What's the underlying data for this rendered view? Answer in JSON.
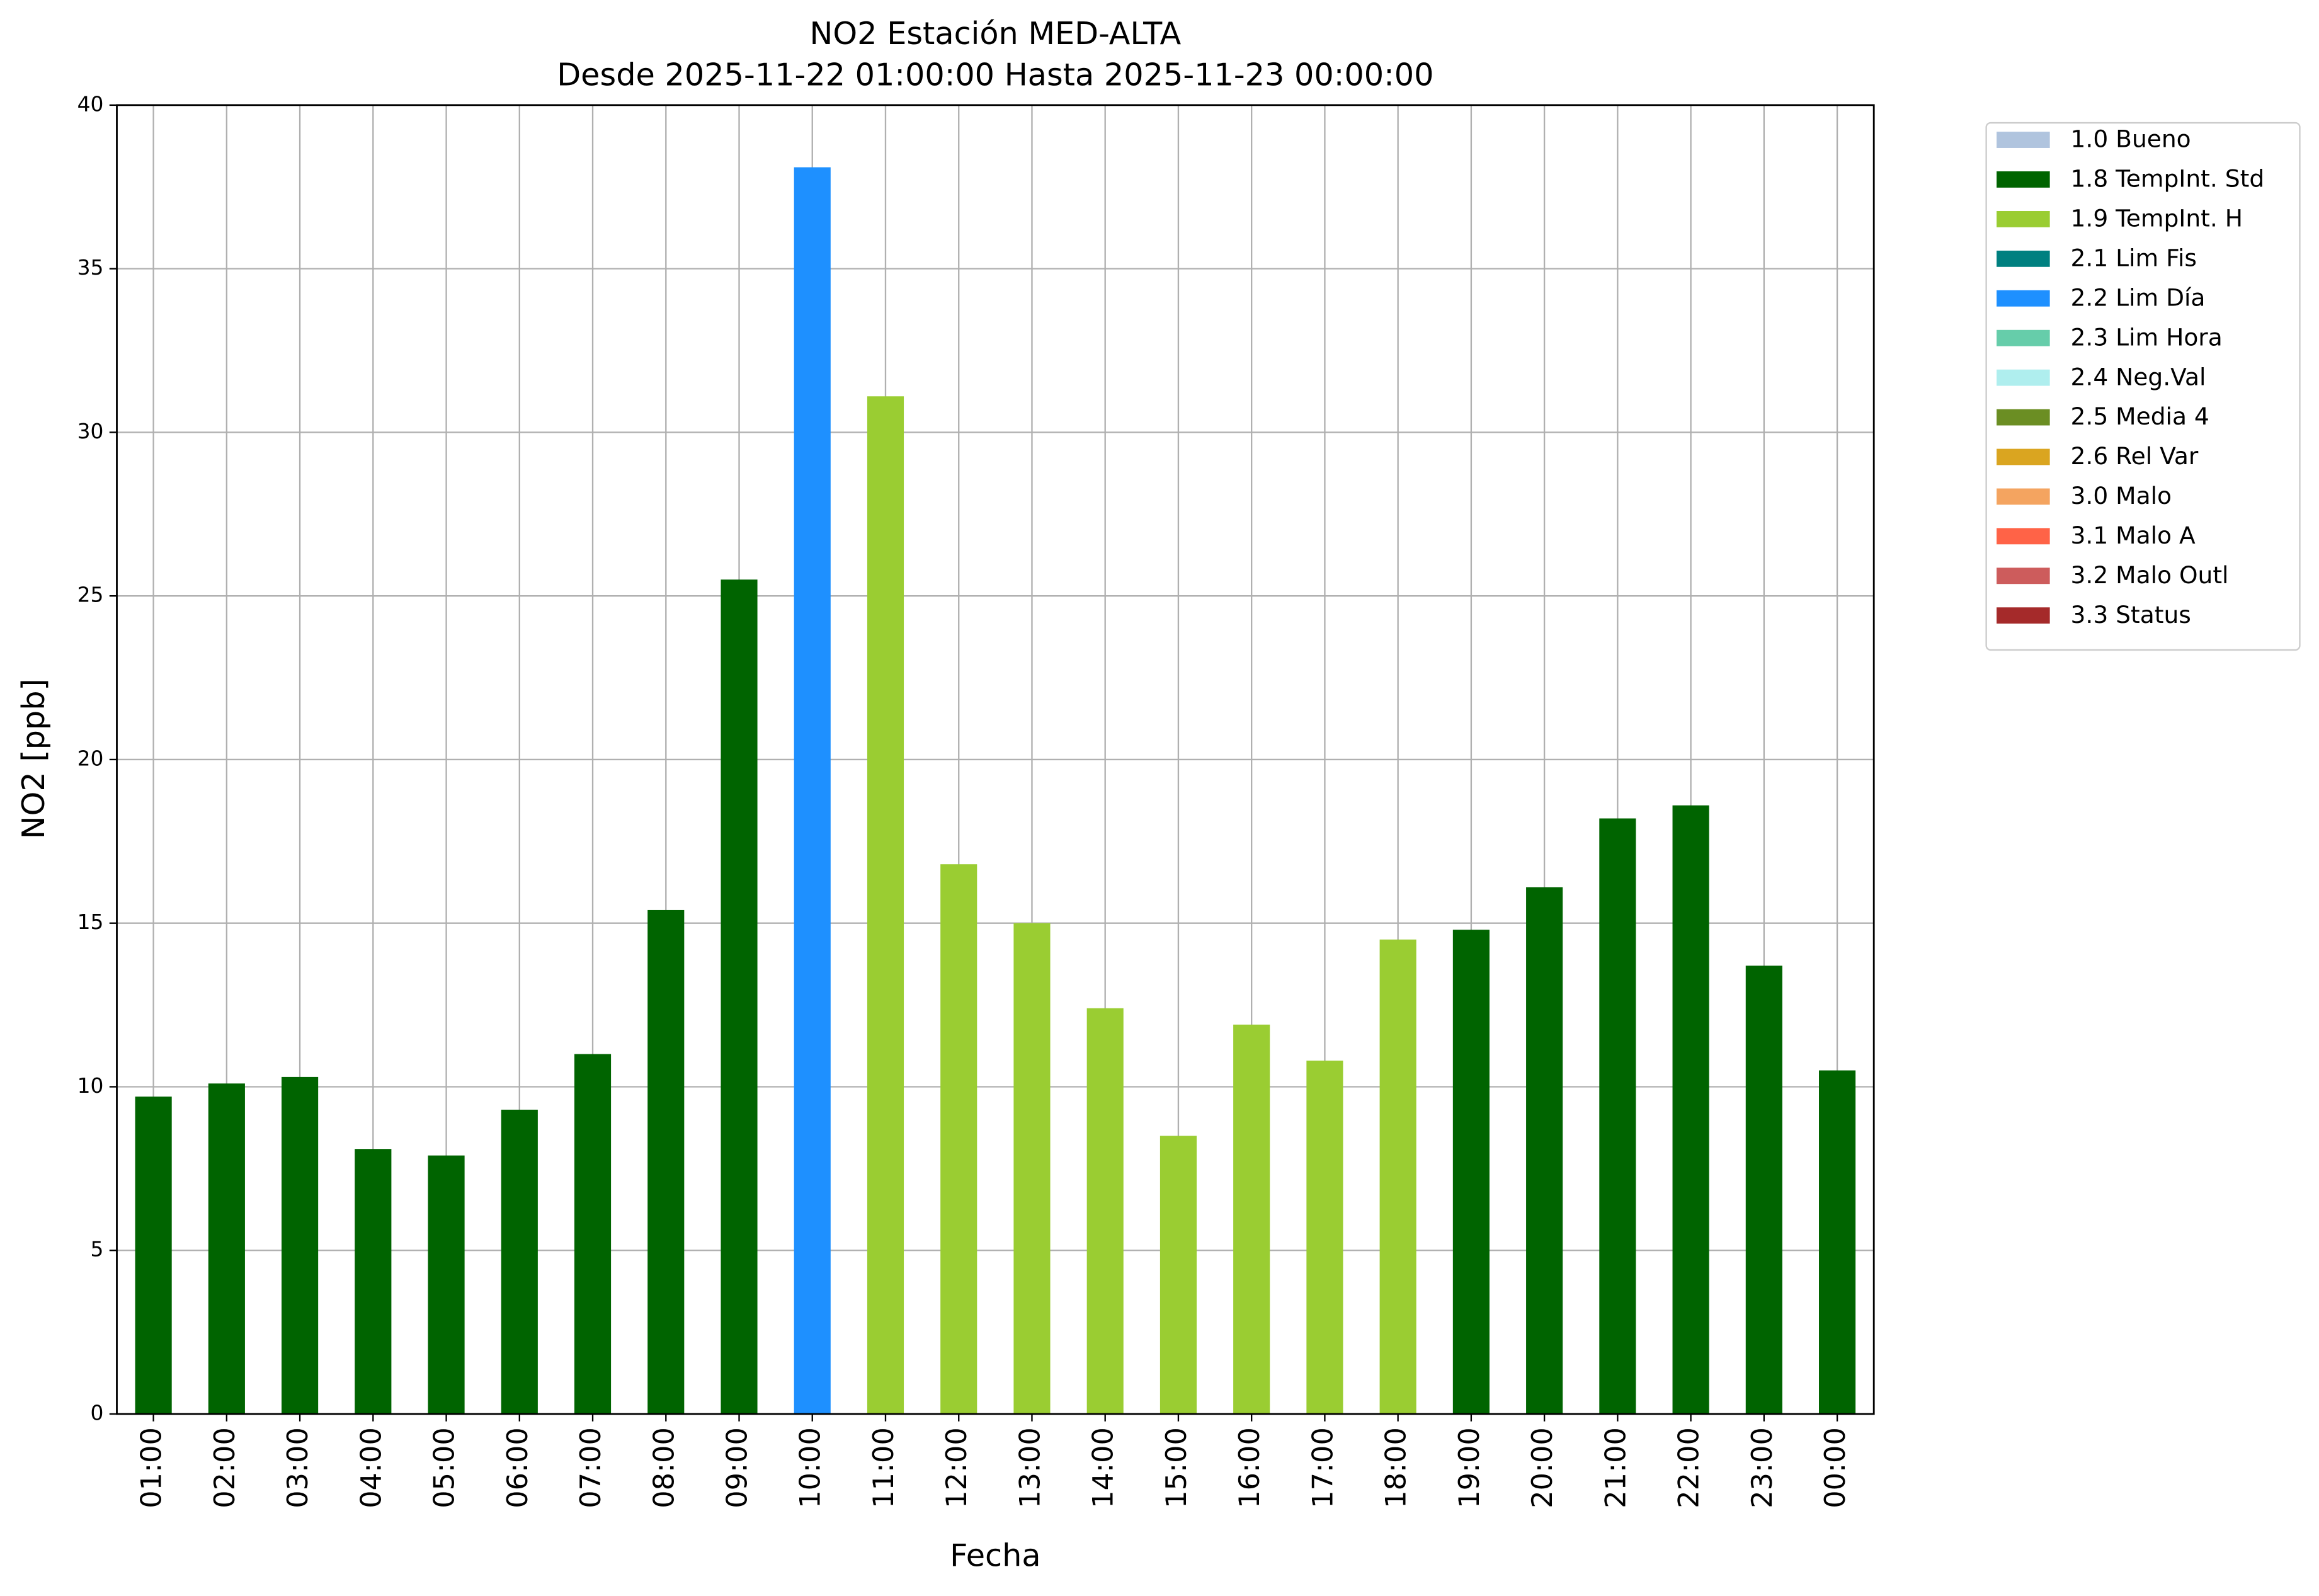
{
  "chart_data": {
    "type": "bar",
    "title": "NO2 Estación MED-ALTA",
    "subtitle": "Desde 2025-11-22 01:00:00 Hasta 2025-11-23 00:00:00",
    "x_label": "Fecha",
    "y_label": "NO2 [ppb]",
    "categories": [
      "01:00",
      "02:00",
      "03:00",
      "04:00",
      "05:00",
      "06:00",
      "07:00",
      "08:00",
      "09:00",
      "10:00",
      "11:00",
      "12:00",
      "13:00",
      "14:00",
      "15:00",
      "16:00",
      "17:00",
      "18:00",
      "19:00",
      "20:00",
      "21:00",
      "22:00",
      "23:00",
      "00:00"
    ],
    "ylim": [
      0,
      40
    ],
    "yticks": [
      0,
      5,
      10,
      15,
      20,
      25,
      30,
      35,
      40
    ],
    "grid": true,
    "legend": "outside-upper-right",
    "series": [
      {
        "name": "1.0 Bueno",
        "color": "#b0c4de",
        "values": [
          null,
          null,
          null,
          null,
          null,
          null,
          null,
          null,
          null,
          null,
          null,
          null,
          null,
          null,
          null,
          null,
          null,
          null,
          null,
          null,
          null,
          null,
          null,
          null
        ]
      },
      {
        "name": "1.8 TempInt. Std",
        "color": "#006400",
        "values": [
          9.7,
          10.1,
          10.3,
          8.1,
          7.9,
          9.3,
          11.0,
          15.4,
          25.5,
          null,
          null,
          null,
          null,
          null,
          null,
          null,
          null,
          null,
          14.8,
          16.1,
          18.2,
          18.6,
          13.7,
          10.5
        ]
      },
      {
        "name": "1.9 TempInt. H",
        "color": "#9acd32",
        "values": [
          null,
          null,
          null,
          null,
          null,
          null,
          null,
          null,
          null,
          null,
          31.1,
          16.8,
          15.0,
          12.4,
          8.5,
          11.9,
          10.8,
          14.5,
          null,
          null,
          null,
          null,
          null,
          null
        ]
      },
      {
        "name": "2.1 Lim Fis",
        "color": "#008080",
        "values": [
          null,
          null,
          null,
          null,
          null,
          null,
          null,
          null,
          null,
          null,
          null,
          null,
          null,
          null,
          null,
          null,
          null,
          null,
          null,
          null,
          null,
          null,
          null,
          null
        ]
      },
      {
        "name": "2.2 Lim Día",
        "color": "#1e90ff",
        "values": [
          null,
          null,
          null,
          null,
          null,
          null,
          null,
          null,
          null,
          38.1,
          null,
          null,
          null,
          null,
          null,
          null,
          null,
          null,
          null,
          null,
          null,
          null,
          null,
          null
        ]
      },
      {
        "name": "2.3 Lim Hora",
        "color": "#66cdaa",
        "values": [
          null,
          null,
          null,
          null,
          null,
          null,
          null,
          null,
          null,
          null,
          null,
          null,
          null,
          null,
          null,
          null,
          null,
          null,
          null,
          null,
          null,
          null,
          null,
          null
        ]
      },
      {
        "name": "2.4 Neg.Val",
        "color": "#afeeee",
        "values": [
          null,
          null,
          null,
          null,
          null,
          null,
          null,
          null,
          null,
          null,
          null,
          null,
          null,
          null,
          null,
          null,
          null,
          null,
          null,
          null,
          null,
          null,
          null,
          null
        ]
      },
      {
        "name": "2.5 Media 4",
        "color": "#6b8e23",
        "values": [
          null,
          null,
          null,
          null,
          null,
          null,
          null,
          null,
          null,
          null,
          null,
          null,
          null,
          null,
          null,
          null,
          null,
          null,
          null,
          null,
          null,
          null,
          null,
          null
        ]
      },
      {
        "name": "2.6 Rel Var",
        "color": "#daa520",
        "values": [
          null,
          null,
          null,
          null,
          null,
          null,
          null,
          null,
          null,
          null,
          null,
          null,
          null,
          null,
          null,
          null,
          null,
          null,
          null,
          null,
          null,
          null,
          null,
          null
        ]
      },
      {
        "name": "3.0 Malo",
        "color": "#f4a460",
        "values": [
          null,
          null,
          null,
          null,
          null,
          null,
          null,
          null,
          null,
          null,
          null,
          null,
          null,
          null,
          null,
          null,
          null,
          null,
          null,
          null,
          null,
          null,
          null,
          null
        ]
      },
      {
        "name": "3.1 Malo A",
        "color": "#ff6347",
        "values": [
          null,
          null,
          null,
          null,
          null,
          null,
          null,
          null,
          null,
          null,
          null,
          null,
          null,
          null,
          null,
          null,
          null,
          null,
          null,
          null,
          null,
          null,
          null,
          null
        ]
      },
      {
        "name": "3.2 Malo Outl",
        "color": "#cd5c5c",
        "values": [
          null,
          null,
          null,
          null,
          null,
          null,
          null,
          null,
          null,
          null,
          null,
          null,
          null,
          null,
          null,
          null,
          null,
          null,
          null,
          null,
          null,
          null,
          null,
          null
        ]
      },
      {
        "name": "3.3 Status",
        "color": "#a52a2a",
        "values": [
          null,
          null,
          null,
          null,
          null,
          null,
          null,
          null,
          null,
          null,
          null,
          null,
          null,
          null,
          null,
          null,
          null,
          null,
          null,
          null,
          null,
          null,
          null,
          null
        ]
      }
    ]
  }
}
